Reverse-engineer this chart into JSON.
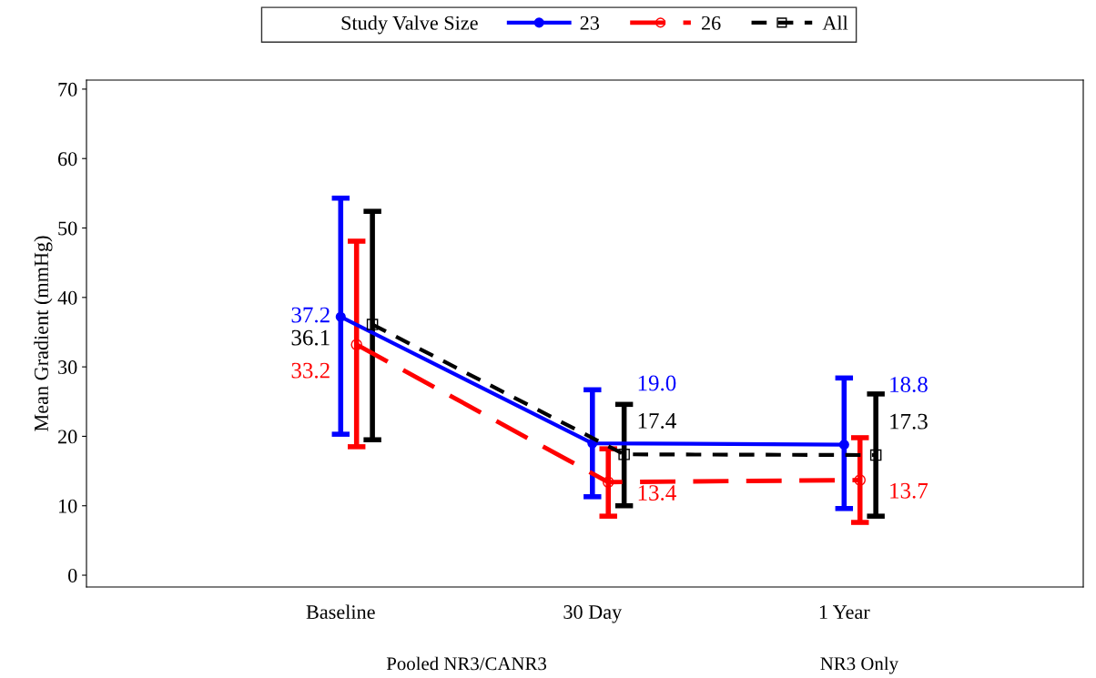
{
  "chart_data": {
    "type": "line",
    "ylabel": "Mean Gradient (mmHg)",
    "categories": [
      "Baseline",
      "30 Day",
      "1 Year"
    ],
    "legend_title": "Study Valve Size",
    "legend": "top",
    "grid": false,
    "ylim": [
      -1.7,
      71.3
    ],
    "yticks": [
      0,
      10,
      20,
      30,
      40,
      50,
      60,
      70
    ],
    "annotations": [
      "Pooled NR3/CANR3",
      "NR3 Only"
    ],
    "series": [
      {
        "name": "23",
        "color": "#0000ff",
        "marker": "circle",
        "line_style": "solid",
        "values": [
          37.2,
          19.0,
          18.8
        ],
        "value_labels": [
          "37.2",
          "19.0",
          "18.8"
        ],
        "errors": [
          [
            20.3,
            54.3
          ],
          [
            11.3,
            26.7
          ],
          [
            9.6,
            28.4
          ]
        ]
      },
      {
        "name": "26",
        "color": "#ff0000",
        "marker": "circle",
        "line_style": "dashed",
        "values": [
          33.2,
          13.4,
          13.7
        ],
        "value_labels": [
          "33.2",
          "13.4",
          "13.7"
        ],
        "errors": [
          [
            18.5,
            48.1
          ],
          [
            8.5,
            18.2
          ],
          [
            7.6,
            19.8
          ]
        ]
      },
      {
        "name": "All",
        "color": "#000000",
        "marker": "square",
        "line_style": "dotted",
        "values": [
          36.1,
          17.4,
          17.3
        ],
        "value_labels": [
          "36.1",
          "17.4",
          "17.3"
        ],
        "errors": [
          [
            19.5,
            52.4
          ],
          [
            10.0,
            24.6
          ],
          [
            8.5,
            26.1
          ]
        ]
      }
    ]
  }
}
